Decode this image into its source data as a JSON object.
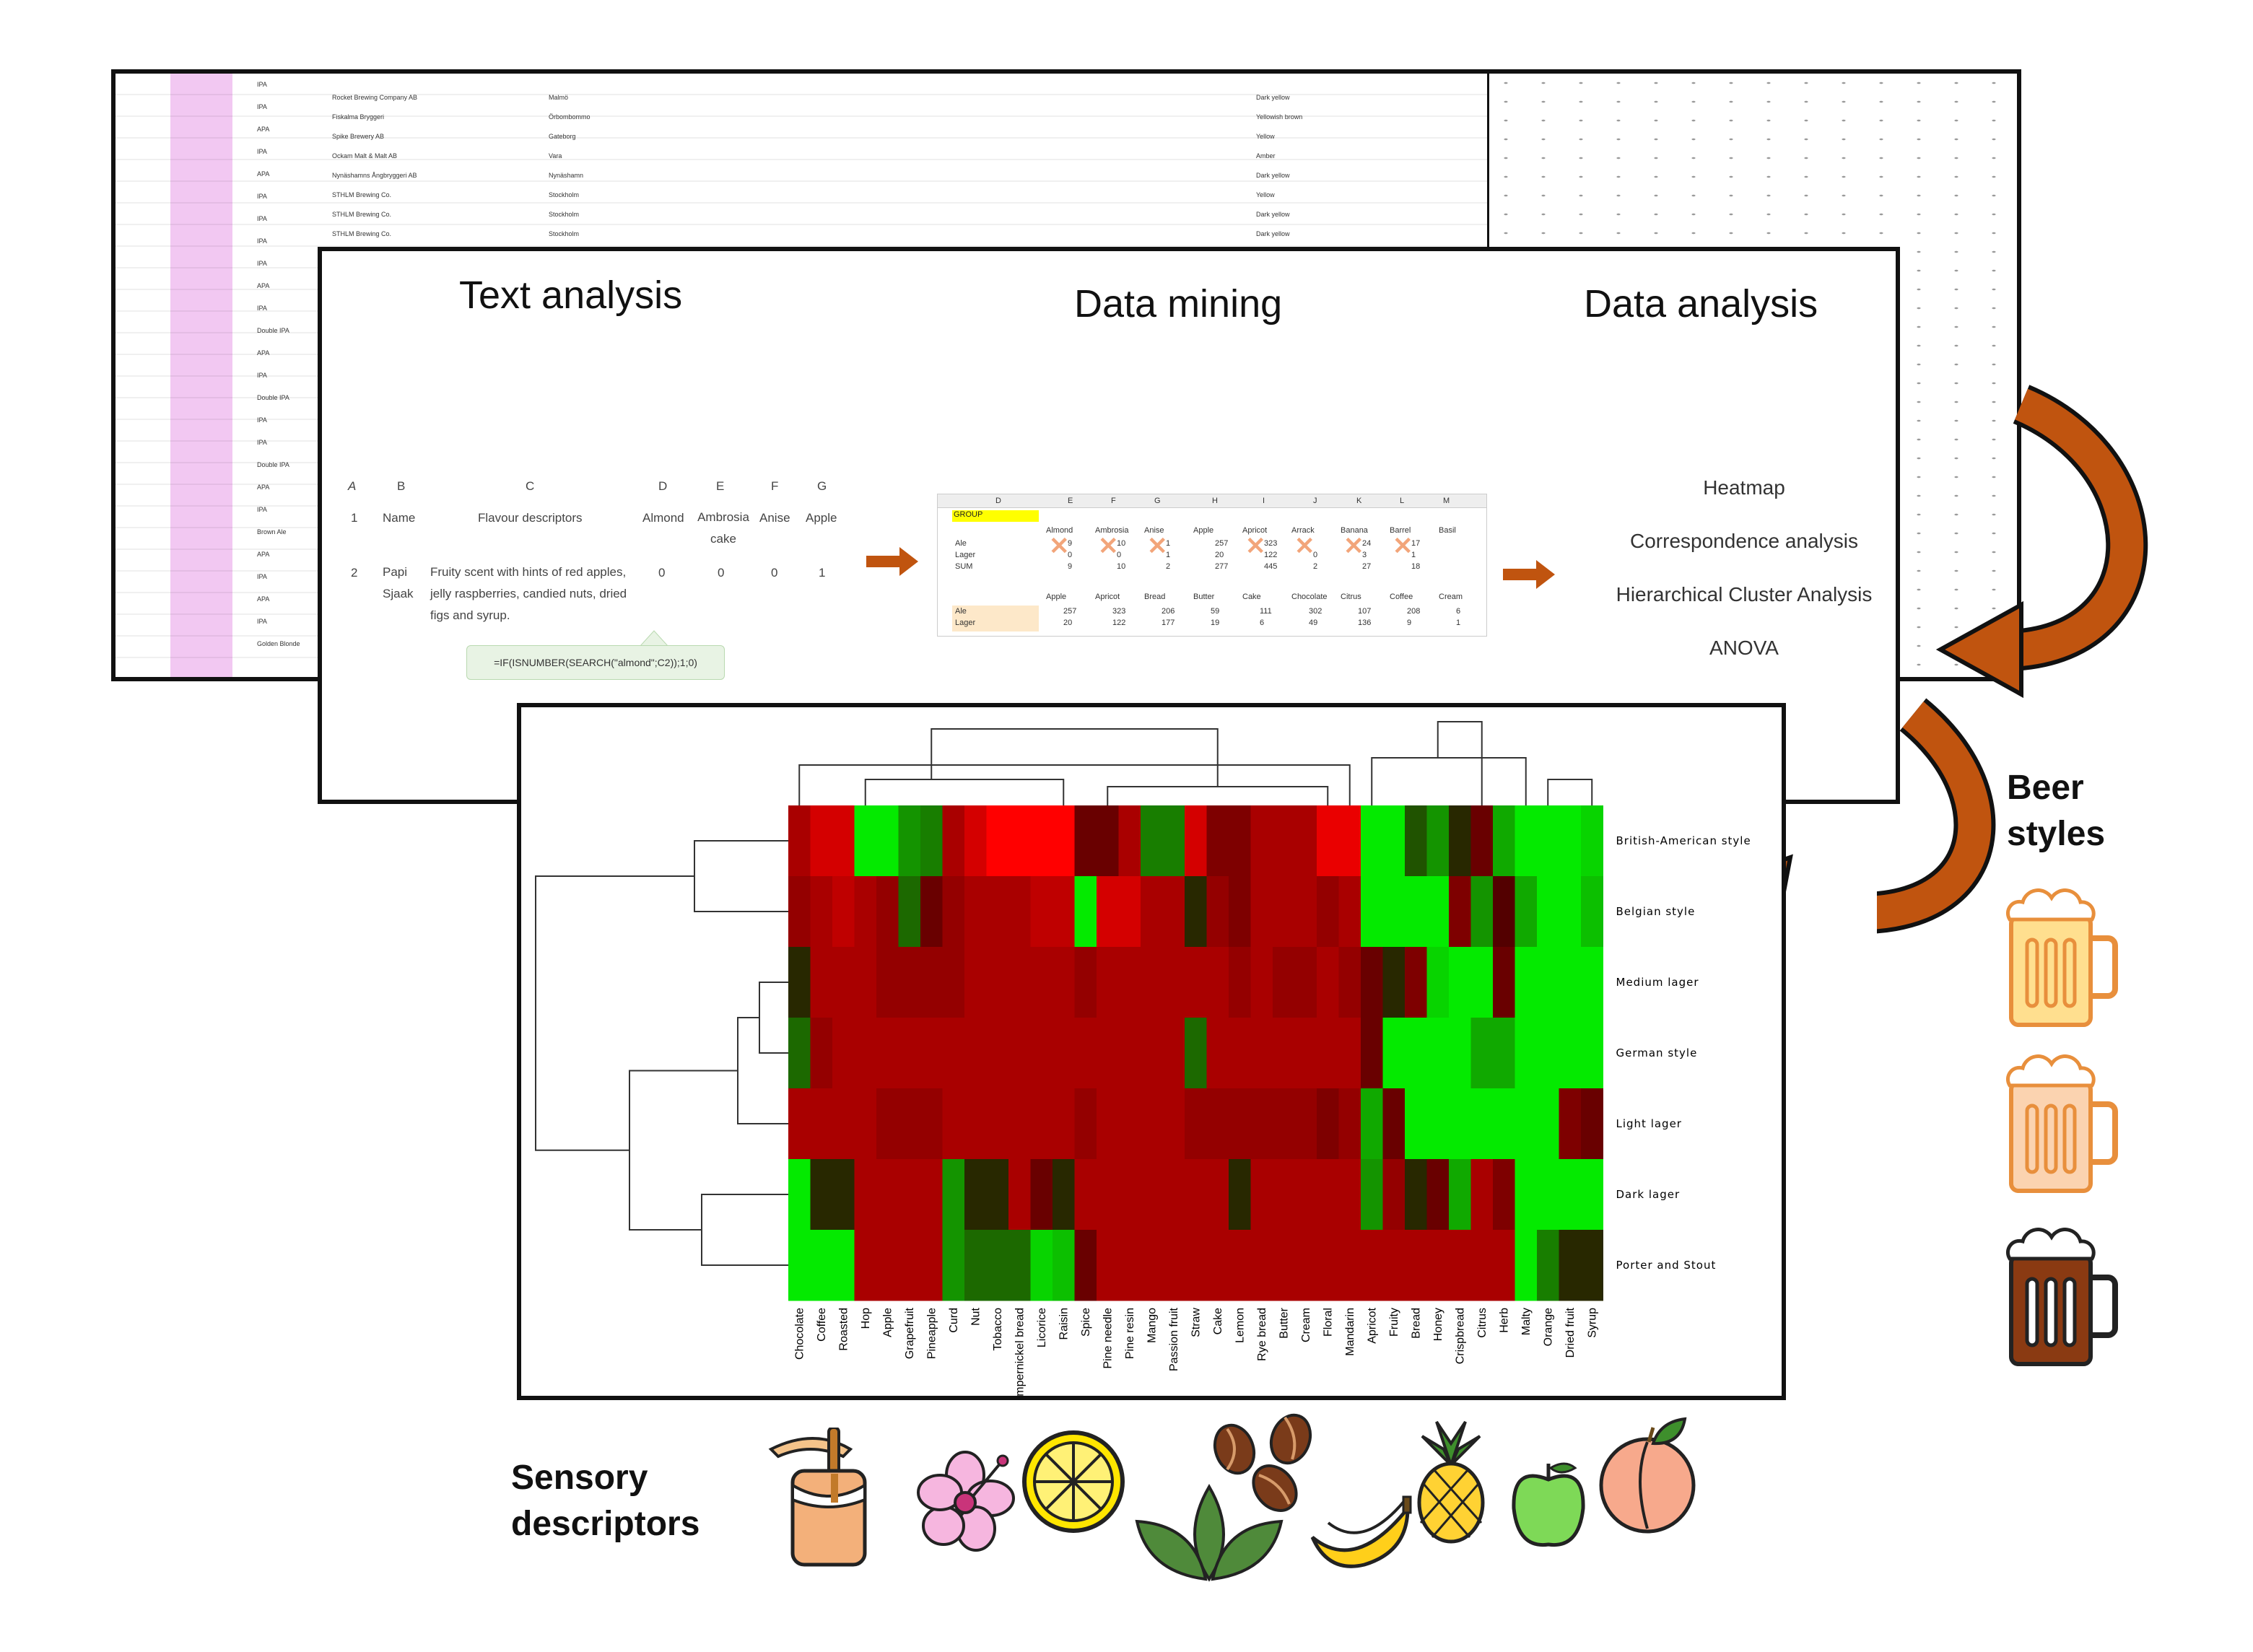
{
  "background_sheet": {
    "style_column": [
      "IPA",
      "IPA",
      "APA",
      "IPA",
      "APA",
      "IPA",
      "IPA",
      "IPA",
      "IPA",
      "APA",
      "IPA",
      "Double IPA",
      "APA",
      "IPA",
      "Double IPA",
      "IPA",
      "IPA",
      "Double IPA",
      "APA",
      "IPA",
      "Brown Ale",
      "APA",
      "IPA",
      "APA",
      "IPA",
      "Golden Blonde"
    ],
    "brewery_rows": [
      "Rocket Brewing Company AB",
      "Fiskalma Bryggeri",
      "Spike Brewery AB",
      "Ockam Malt & Malt AB",
      "Nynäshamns Ångbryggeri AB",
      "STHLM Brewing Co.",
      "STHLM Brewing Co.",
      "STHLM Brewing Co."
    ],
    "city_rows": [
      "Malmö",
      "Örbombommo",
      "Gateborg",
      "Vara",
      "Nynäshamn",
      "Stockholm",
      "Stockholm",
      "Stockholm"
    ],
    "colour_rows": [
      "Dark yellow",
      "Yellowish brown",
      "Yellow",
      "Amber",
      "Dark yellow",
      "Yellow",
      "Dark yellow",
      "Dark yellow"
    ]
  },
  "pipeline": {
    "stages": [
      {
        "title": "Text analysis"
      },
      {
        "title": "Data mining"
      },
      {
        "title": "Data analysis"
      }
    ],
    "text_analysis": {
      "col_letters": [
        "A",
        "B",
        "C",
        "D",
        "E",
        "F",
        "G"
      ],
      "headers": [
        "Name",
        "Flavour descriptors",
        "Almond",
        "Ambrosia cake",
        "Anise",
        "Apple"
      ],
      "row_numbers": [
        "1",
        "2"
      ],
      "example_name": "Papi Sjaak",
      "example_descriptors": "Fruity scent with hints of red apples, jelly raspberries, candied nuts, dried figs and syrup.",
      "example_values": [
        "0",
        "0",
        "0",
        "1"
      ],
      "formula": "=IF(ISNUMBER(SEARCH(\"almond\";C2));1;0)"
    },
    "data_mining": {
      "col_letters": [
        "D",
        "E",
        "F",
        "G",
        "H",
        "I",
        "J",
        "K",
        "L",
        "M"
      ],
      "group_label": "GROUP",
      "descriptor_headers": [
        "Almond",
        "Ambrosia",
        "Anise",
        "Apple",
        "Apricot",
        "Arrack",
        "Banana",
        "Barrel",
        "Basil"
      ],
      "row_labels": [
        "Ale",
        "Lager",
        "SUM"
      ],
      "ale_values": [
        "9",
        "10",
        "1",
        "257",
        "323",
        "",
        "24",
        "17"
      ],
      "lager_values": [
        "0",
        "0",
        "1",
        "20",
        "122",
        "0",
        "3",
        "1"
      ],
      "sum_values": [
        "9",
        "10",
        "2",
        "277",
        "445",
        "2",
        "27",
        "18"
      ],
      "summary_headers": [
        "Apple",
        "Apricot",
        "Bread",
        "Butter",
        "Cake",
        "Chocolate",
        "Citrus",
        "Coffee",
        "Cream"
      ],
      "summary_ale": [
        "257",
        "323",
        "206",
        "59",
        "111",
        "302",
        "107",
        "208",
        "6"
      ],
      "summary_lager": [
        "20",
        "122",
        "177",
        "19",
        "6",
        "49",
        "136",
        "9",
        "1"
      ],
      "summary_row_labels": [
        "Ale",
        "Lager"
      ]
    },
    "data_analysis_items": [
      "Heatmap",
      "Correspondence analysis",
      "Hierarchical Cluster Analysis",
      "ANOVA"
    ]
  },
  "chart_data": {
    "type": "heatmap",
    "title": "",
    "rows": [
      "British-American style",
      "Belgian style",
      "Medium lager",
      "German style",
      "Light lager",
      "Dark lager",
      "Porter and Stout"
    ],
    "columns": [
      "Chocolate",
      "Coffee",
      "Roasted",
      "Hop",
      "Apple",
      "Grapefruit",
      "Pineapple",
      "Curd",
      "Nut",
      "Tobacco",
      "Pumpernickel bread",
      "Licorice",
      "Raisin",
      "Spice",
      "Pine needle",
      "Pine resin",
      "Mango",
      "Passion fruit",
      "Straw",
      "Cake",
      "Lemon",
      "Rye bread",
      "Butter",
      "Cream",
      "Floral",
      "Mandarin",
      "Apricot",
      "Fruity",
      "Bread",
      "Honey",
      "Crispbread",
      "Citrus",
      "Herb",
      "Malty",
      "Orange",
      "Dried fruit",
      "Syrup"
    ],
    "values": [
      [
        -0.6,
        -0.8,
        -0.8,
        0.9,
        0.9,
        0.5,
        0.4,
        -0.6,
        -0.8,
        -1.0,
        -1.0,
        -1.0,
        -1.0,
        -0.3,
        -0.3,
        -0.6,
        0.4,
        0.4,
        -0.8,
        -0.4,
        -0.4,
        -0.6,
        -0.6,
        -0.6,
        -0.9,
        -0.9,
        0.9,
        0.9,
        0.2,
        0.5,
        0.0,
        -0.3,
        0.6,
        0.9,
        0.9,
        0.9,
        0.8
      ],
      [
        -0.5,
        -0.6,
        -0.7,
        -0.6,
        -0.5,
        0.3,
        -0.3,
        -0.5,
        -0.6,
        -0.6,
        -0.6,
        -0.7,
        -0.7,
        0.9,
        -0.8,
        -0.8,
        -0.6,
        -0.6,
        0.0,
        -0.5,
        -0.4,
        -0.6,
        -0.6,
        -0.6,
        -0.5,
        -0.6,
        0.9,
        0.9,
        0.9,
        0.9,
        -0.4,
        0.5,
        -0.2,
        0.6,
        0.9,
        0.9,
        0.7
      ],
      [
        0.0,
        -0.6,
        -0.6,
        -0.6,
        -0.5,
        -0.5,
        -0.5,
        -0.5,
        -0.6,
        -0.6,
        -0.6,
        -0.6,
        -0.6,
        -0.5,
        -0.6,
        -0.6,
        -0.6,
        -0.6,
        -0.6,
        -0.6,
        -0.5,
        -0.6,
        -0.5,
        -0.5,
        -0.6,
        -0.5,
        -0.3,
        0.0,
        -0.4,
        0.8,
        0.9,
        0.9,
        -0.3,
        0.9,
        0.9,
        0.9,
        0.9
      ],
      [
        0.3,
        -0.5,
        -0.6,
        -0.6,
        -0.6,
        -0.6,
        -0.6,
        -0.6,
        -0.6,
        -0.6,
        -0.6,
        -0.6,
        -0.6,
        -0.6,
        -0.6,
        -0.6,
        -0.6,
        -0.6,
        0.3,
        -0.6,
        -0.6,
        -0.6,
        -0.6,
        -0.6,
        -0.6,
        -0.6,
        -0.3,
        0.9,
        0.9,
        0.9,
        0.9,
        0.6,
        0.6,
        0.9,
        0.9,
        0.9,
        0.9
      ],
      [
        -0.6,
        -0.6,
        -0.6,
        -0.6,
        -0.5,
        -0.5,
        -0.5,
        -0.6,
        -0.6,
        -0.6,
        -0.6,
        -0.6,
        -0.6,
        -0.5,
        -0.6,
        -0.6,
        -0.6,
        -0.6,
        -0.5,
        -0.5,
        -0.5,
        -0.5,
        -0.5,
        -0.5,
        -0.4,
        -0.5,
        0.6,
        -0.3,
        0.9,
        0.9,
        0.9,
        0.9,
        0.9,
        0.9,
        0.9,
        -0.4,
        -0.3
      ],
      [
        0.9,
        0.0,
        0.0,
        -0.6,
        -0.6,
        -0.6,
        -0.6,
        0.5,
        0.0,
        0.0,
        -0.6,
        -0.3,
        0.0,
        -0.6,
        -0.6,
        -0.6,
        -0.6,
        -0.6,
        -0.6,
        -0.6,
        0.0,
        -0.6,
        -0.6,
        -0.6,
        -0.6,
        -0.6,
        0.5,
        -0.5,
        0.0,
        -0.3,
        0.6,
        -0.6,
        -0.4,
        0.9,
        0.9,
        0.9,
        0.9
      ],
      [
        0.9,
        0.9,
        0.9,
        -0.6,
        -0.6,
        -0.6,
        -0.6,
        0.5,
        0.3,
        0.3,
        0.3,
        0.8,
        0.7,
        -0.3,
        -0.6,
        -0.6,
        -0.6,
        -0.6,
        -0.6,
        -0.6,
        -0.6,
        -0.6,
        -0.6,
        -0.6,
        -0.6,
        -0.6,
        -0.6,
        -0.6,
        -0.6,
        -0.6,
        -0.6,
        -0.6,
        -0.6,
        0.9,
        0.4,
        0.0,
        0.0
      ]
    ]
  },
  "beer_styles_label": "Beer styles",
  "sensory_label": "Sensory descriptors",
  "icons": [
    "beer-mug-icon",
    "honey-icon",
    "hibiscus-icon",
    "lemon-icon",
    "coffee-bean-icon",
    "herb-icon",
    "banana-icon",
    "pineapple-icon",
    "apple-icon",
    "peach-icon"
  ],
  "colors": {
    "arrow": "#c0540f",
    "heat_red": "#cc0000",
    "heat_green": "#00ff00"
  }
}
